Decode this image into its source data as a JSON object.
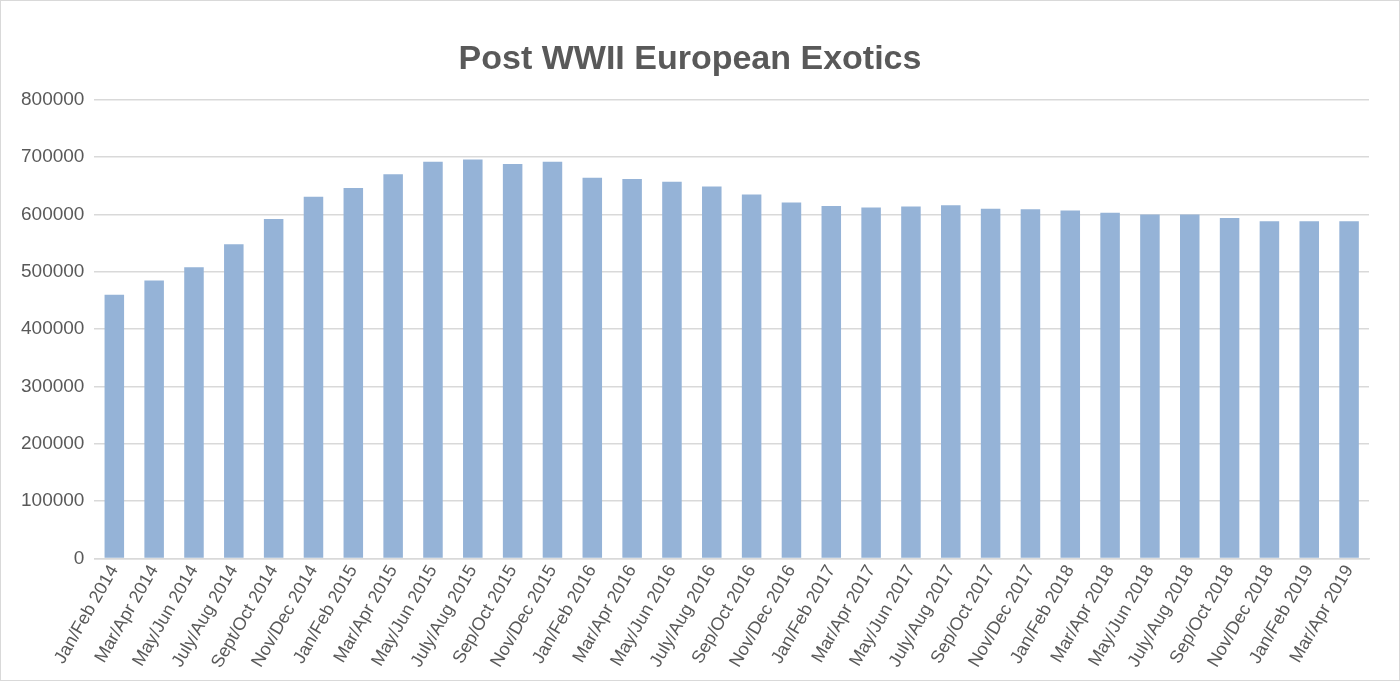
{
  "chart_data": {
    "type": "bar",
    "title": "Post WWII European Exotics",
    "categories": [
      "Jan/Feb 2014",
      "Mar/Apr 2014",
      "May/Jun 2014",
      "July/Aug 2014",
      "Sept/Oct 2014",
      "Nov/Dec 2014",
      "Jan/Feb 2015",
      "Mar/Apr 2015",
      "May/Jun 2015",
      "July/Aug 2015",
      "Sep/Oct 2015",
      "Nov/Dec 2015",
      "Jan/Feb 2016",
      "Mar/Apr 2016",
      "May/Jun 2016",
      "July/Aug 2016",
      "Sep/Oct 2016",
      "Nov/Dec 2016",
      "Jan/Feb 2017",
      "Mar/Apr 2017",
      "May/Jun 2017",
      "July/Aug 2017",
      "Sep/Oct 2017",
      "Nov/Dec 2017",
      "Jan/Feb 2018",
      "Mar/Apr 2018",
      "May/Jun 2018",
      "July/Aug 2018",
      "Sep/Oct 2018",
      "Nov/Dec 2018",
      "Jan/Feb 2019",
      "Mar/Apr 2019"
    ],
    "values": [
      460000,
      485000,
      508000,
      548000,
      592000,
      631000,
      646000,
      670000,
      692000,
      696000,
      688000,
      692000,
      664000,
      662000,
      657000,
      649000,
      635000,
      621000,
      615000,
      612000,
      614000,
      616000,
      610000,
      609000,
      607000,
      603000,
      600000,
      600000,
      594000,
      588000,
      588000,
      588000
    ],
    "color": "#95b3d7",
    "ylim": [
      0,
      800000
    ],
    "yticks": [
      0,
      100000,
      200000,
      300000,
      400000,
      500000,
      600000,
      700000,
      800000
    ],
    "grid": "y",
    "legend": false
  }
}
